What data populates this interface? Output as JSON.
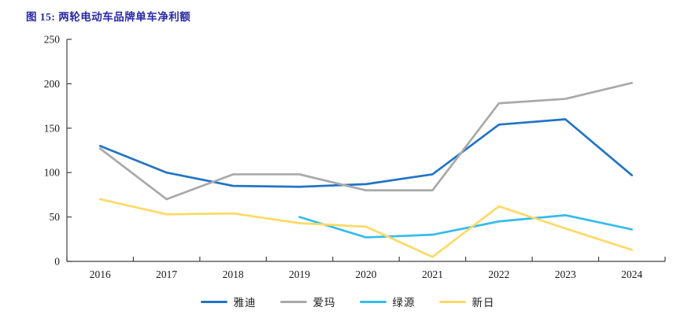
{
  "page": {
    "background": "#ffffff"
  },
  "colors": {
    "title_text": "#2929A8",
    "axis_line": "#404040",
    "tick_text": "#1a1a1a"
  },
  "chart_data": {
    "type": "line",
    "title": "图 15: 两轮电动车品牌单车净利额",
    "categories": [
      "2016",
      "2017",
      "2018",
      "2019",
      "2020",
      "2021",
      "2022",
      "2023",
      "2024"
    ],
    "series": [
      {
        "name": "雅迪",
        "color": "#2374C5",
        "values": [
          130,
          100,
          85,
          84,
          87,
          98,
          154,
          160,
          97
        ]
      },
      {
        "name": "爱玛",
        "color": "#A9A9A9",
        "values": [
          127,
          70,
          98,
          98,
          80,
          80,
          178,
          183,
          201
        ]
      },
      {
        "name": "绿源",
        "color": "#35BCEC",
        "values": [
          null,
          null,
          null,
          50,
          27,
          30,
          45,
          52,
          36
        ]
      },
      {
        "name": "新日",
        "color": "#FFD966",
        "values": [
          70,
          53,
          54,
          43,
          39,
          5,
          62,
          37,
          13
        ]
      }
    ],
    "xlabel": "",
    "ylabel": "",
    "ylim": [
      0,
      250
    ],
    "yticks": [
      0,
      50,
      100,
      150,
      200,
      250
    ],
    "grid": false,
    "legend_position": "bottom"
  }
}
